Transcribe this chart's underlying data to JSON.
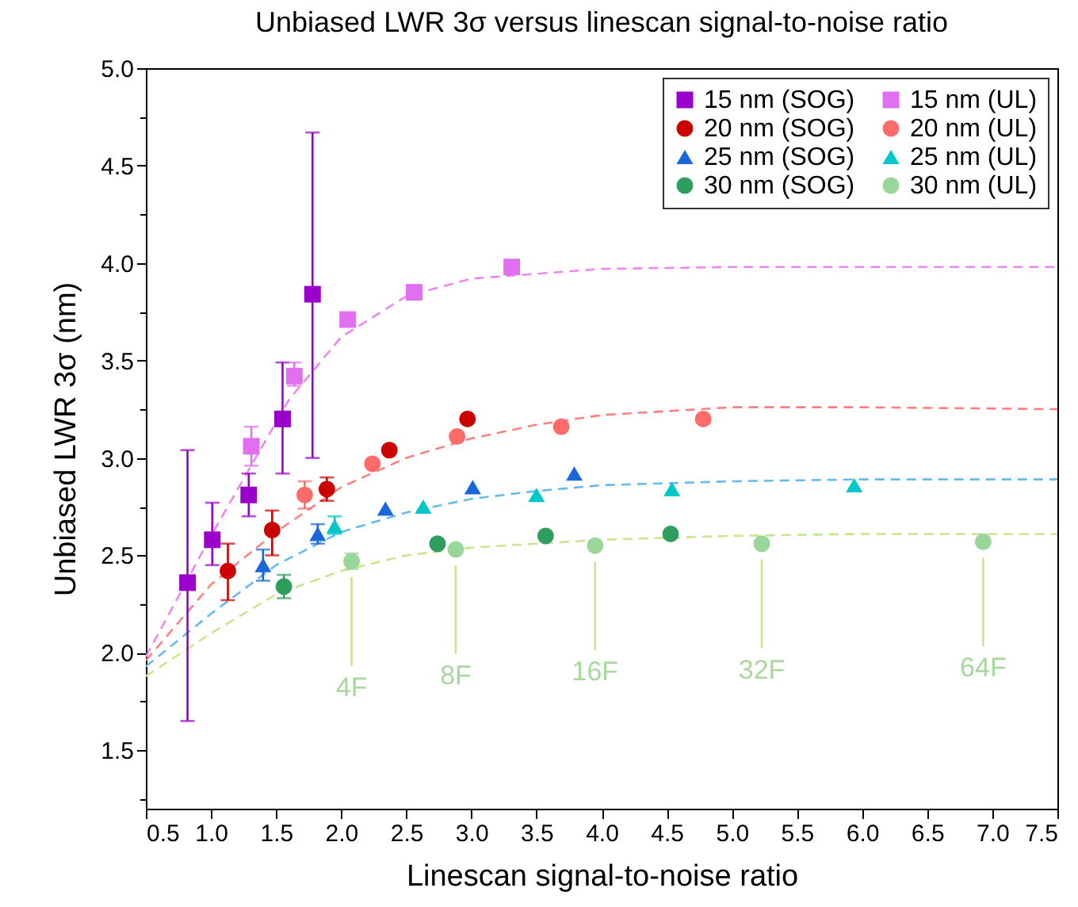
{
  "chart_data": {
    "type": "scatter",
    "title": "Unbiased LWR 3σ versus linescan signal-to-noise ratio",
    "xlabel": "Linescan signal-to-noise ratio",
    "ylabel": "Unbiased LWR 3σ (nm)",
    "xlim": [
      0.5,
      7.5
    ],
    "ylim": [
      1.2,
      5
    ],
    "xticks": [
      0.5,
      {
        "value": 1,
        "label": "1.0"
      },
      1.5,
      {
        "value": 2,
        "label": "2.0"
      },
      2.5,
      {
        "value": 3,
        "label": "3.0"
      },
      3.5,
      {
        "value": 4,
        "label": "4.0"
      },
      4.5,
      {
        "value": 5,
        "label": "5.0"
      },
      5.5,
      {
        "value": 6,
        "label": "6.0"
      },
      6.5,
      {
        "value": 7,
        "label": "7.0"
      },
      7.5
    ],
    "yticks": [
      {
        "value": 1.25,
        "label": null
      },
      1.5,
      {
        "value": 1.75,
        "label": null
      },
      {
        "value": 2,
        "label": "2.0"
      },
      {
        "value": 2.25,
        "label": null
      },
      2.5,
      {
        "value": 2.75,
        "label": null
      },
      {
        "value": 3,
        "label": "3.0"
      },
      {
        "value": 3.25,
        "label": null
      },
      3.5,
      {
        "value": 3.75,
        "label": null
      },
      {
        "value": 4,
        "label": "4.0"
      },
      {
        "value": 4.25,
        "label": null
      },
      4.5,
      {
        "value": 4.75,
        "label": null
      },
      {
        "value": 5,
        "label": "5.0"
      }
    ],
    "grid": false,
    "legend": "top right",
    "series": [
      {
        "name": "15 nm (SOG)",
        "color": "#9900cc",
        "marker": "square",
        "x": [
          0.82,
          1.01,
          1.29,
          1.55,
          1.78
        ],
        "values": [
          2.36,
          2.58,
          2.81,
          3.2,
          3.84
        ],
        "errors": [
          [
            1.65,
            3.04
          ],
          [
            2.45,
            2.77
          ],
          [
            2.7,
            2.92
          ],
          [
            2.92,
            3.49
          ],
          [
            3.0,
            4.67
          ]
        ]
      },
      {
        "name": "20 nm (SOG)",
        "color": "#cc0000",
        "marker": "circle",
        "x": [
          1.13,
          1.47,
          1.89,
          2.37,
          2.97
        ],
        "values": [
          2.42,
          2.63,
          2.84,
          3.04,
          3.2
        ],
        "errors": [
          [
            2.27,
            2.56
          ],
          [
            2.5,
            2.73
          ],
          [
            2.78,
            2.9
          ],
          null,
          null
        ]
      },
      {
        "name": "25 nm (SOG)",
        "color": "#1a66dd",
        "marker": "triangle",
        "x": [
          1.4,
          1.82,
          2.34,
          3.01,
          3.79
        ],
        "values": [
          2.45,
          2.61,
          2.74,
          2.85,
          2.92
        ],
        "errors": [
          [
            2.37,
            2.53
          ],
          [
            2.56,
            2.66
          ],
          null,
          null,
          null
        ]
      },
      {
        "name": "30 nm (SOG)",
        "color": "#2e9e5e",
        "marker": "circle",
        "x": [
          1.56,
          2.74,
          3.57,
          4.53
        ],
        "values": [
          2.34,
          2.56,
          2.6,
          2.61
        ],
        "errors": [
          [
            2.28,
            2.4
          ],
          null,
          null,
          null
        ]
      },
      {
        "name": "15 nm (UL)",
        "color": "#e070f0",
        "marker": "square",
        "x": [
          1.31,
          1.64,
          2.05,
          2.56,
          3.31
        ],
        "values": [
          3.06,
          3.42,
          3.71,
          3.85,
          3.98
        ],
        "errors": [
          [
            2.96,
            3.16
          ],
          [
            3.37,
            3.49
          ],
          null,
          null,
          null
        ]
      },
      {
        "name": "20 nm (UL)",
        "color": "#ff6b6b",
        "marker": "circle",
        "x": [
          1.72,
          2.24,
          2.89,
          3.69,
          4.78
        ],
        "values": [
          2.81,
          2.97,
          3.11,
          3.16,
          3.2
        ],
        "errors": [
          [
            2.74,
            2.88
          ],
          null,
          null,
          null,
          null
        ]
      },
      {
        "name": "25 nm (UL)",
        "color": "#00c8c8",
        "marker": "triangle",
        "x": [
          1.95,
          2.63,
          3.5,
          4.54,
          5.94
        ],
        "values": [
          2.65,
          2.75,
          2.81,
          2.84,
          2.86
        ],
        "errors": [
          [
            2.61,
            2.7
          ],
          null,
          null,
          null,
          null
        ]
      },
      {
        "name": "30 nm (UL)",
        "color": "#99d699",
        "marker": "circle",
        "x": [
          2.08,
          2.88,
          3.95,
          5.23,
          6.93
        ],
        "values": [
          2.47,
          2.53,
          2.55,
          2.56,
          2.57
        ],
        "errors": [
          [
            2.43,
            2.51
          ],
          null,
          null,
          null,
          null
        ]
      },
      {
        "type": "line",
        "color": "#ee88ee",
        "line_style": "dashed",
        "marker": "none",
        "x": [
          0.5,
          0.8,
          1.0,
          1.3,
          1.6,
          2.0,
          2.5,
          3.0,
          4.0,
          5.0,
          6.0,
          7.5
        ],
        "values": [
          1.98,
          2.35,
          2.6,
          2.95,
          3.3,
          3.62,
          3.83,
          3.92,
          3.97,
          3.98,
          3.98,
          3.98
        ]
      },
      {
        "type": "line",
        "color": "#ff8080",
        "line_style": "dashed",
        "marker": "none",
        "x": [
          0.5,
          1.0,
          1.5,
          2.0,
          2.5,
          3.0,
          3.5,
          4.0,
          5.0,
          6.0,
          7.5
        ],
        "values": [
          1.96,
          2.35,
          2.62,
          2.85,
          3.0,
          3.1,
          3.17,
          3.22,
          3.26,
          3.26,
          3.25
        ]
      },
      {
        "type": "line",
        "color": "#66bbee",
        "line_style": "dashed",
        "marker": "none",
        "x": [
          0.5,
          1.0,
          1.5,
          2.0,
          2.5,
          3.0,
          3.5,
          4.0,
          5.0,
          6.0,
          7.5
        ],
        "values": [
          1.93,
          2.2,
          2.45,
          2.62,
          2.72,
          2.79,
          2.83,
          2.86,
          2.88,
          2.89,
          2.89
        ]
      },
      {
        "type": "line",
        "color": "#c8e68c",
        "line_style": "dashed",
        "marker": "none",
        "x": [
          0.5,
          1.0,
          1.5,
          2.0,
          2.5,
          3.0,
          4.0,
          5.0,
          6.0,
          7.5
        ],
        "values": [
          1.88,
          2.1,
          2.3,
          2.42,
          2.5,
          2.54,
          2.58,
          2.6,
          2.61,
          2.61
        ]
      }
    ],
    "annotations": [
      "4F",
      "8F",
      "16F",
      "32F",
      "64F"
    ]
  }
}
